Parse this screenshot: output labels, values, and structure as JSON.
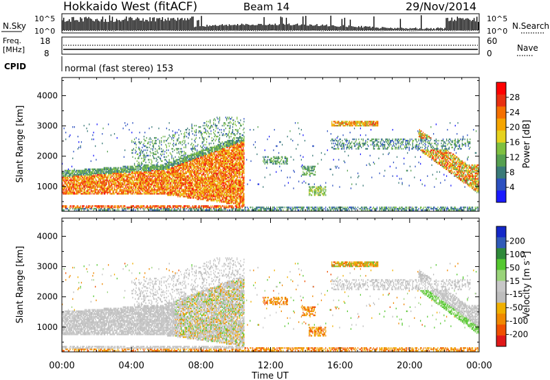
{
  "header": {
    "radar_title": "Hokkaido West (fitACF)",
    "beam": "Beam 14",
    "date": "29/Nov/2014"
  },
  "top_panels": {
    "nsky_label": "N.Sky",
    "nsearch_label": "N.Search",
    "log_ticks_left": [
      "10^5",
      "10^0"
    ],
    "log_ticks_right": [
      "10^5",
      "10^0"
    ],
    "freq_label_1": "Freq.",
    "freq_label_2": "[MHz]",
    "freq_ticks": [
      "18",
      "8"
    ],
    "nave_label": "Nave",
    "nave_ticks": [
      "60",
      "0"
    ],
    "cpid_label": "CPID",
    "cpid_text": "normal (fast stereo) 153"
  },
  "colors": {
    "power_scale": [
      "#1a1aff",
      "#2c50c0",
      "#3a7a78",
      "#56a050",
      "#7fc040",
      "#e6d21e",
      "#f5a500",
      "#f57000",
      "#e83010",
      "#ff0000"
    ],
    "velocity_scale": [
      "#1428c8",
      "#2f5ab8",
      "#2f8a3a",
      "#55c830",
      "#9ad47a",
      "#c8c8c8",
      "#bdbdbd",
      "#f0b000",
      "#f08800",
      "#f05000",
      "#e01818"
    ]
  },
  "chart_data": [
    {
      "type": "heatmap",
      "title": "",
      "xlabel": "Time UT",
      "ylabel": "Slant Range [km]",
      "x_ticks": [
        "00:00",
        "04:00",
        "08:00",
        "12:00",
        "16:00",
        "20:00",
        "00:00"
      ],
      "xlim_hours": [
        0,
        24
      ],
      "y_ticks": [
        1000,
        2000,
        3000,
        4000
      ],
      "ylim": [
        180,
        4600
      ],
      "colorbar_label": "Power [dB]",
      "colorbar_ticks": [
        4,
        8,
        12,
        16,
        20,
        24,
        28
      ],
      "colorbar_range": [
        0,
        32
      ],
      "parameter": "power"
    },
    {
      "type": "heatmap",
      "title": "",
      "xlabel": "Time UT",
      "ylabel": "Slant Range [km]",
      "x_ticks": [
        "00:00",
        "04:00",
        "08:00",
        "12:00",
        "16:00",
        "20:00",
        "00:00"
      ],
      "xlim_hours": [
        0,
        24
      ],
      "y_ticks": [
        1000,
        2000,
        3000,
        4000
      ],
      "ylim": [
        180,
        4600
      ],
      "colorbar_label": "Velocity [m s",
      "colorbar_label_sup": "-1",
      "colorbar_label_end": "]",
      "colorbar_ticks": [
        "200",
        "100",
        "50",
        "15",
        "-15",
        "-50",
        "-100",
        "-200"
      ],
      "parameter": "velocity"
    }
  ]
}
